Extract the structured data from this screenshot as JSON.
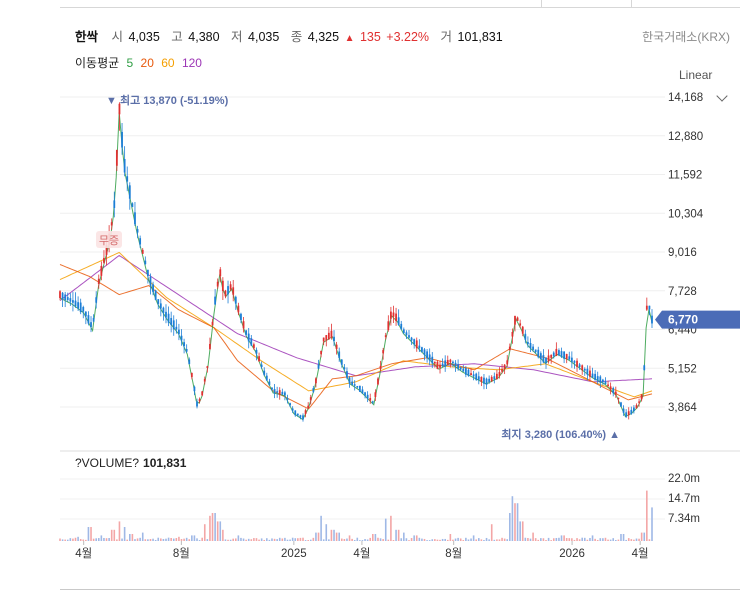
{
  "header": {
    "name": "한싹",
    "open_label": "시",
    "open": "4,035",
    "high_label": "고",
    "high": "4,380",
    "low_label": "저",
    "low": "4,035",
    "close_label": "종",
    "close": "4,325",
    "change_arrow": "▲",
    "change": "135",
    "change_pct": "+3.22%",
    "volume_label": "거",
    "volume": "101,831",
    "exchange": "한국거래소(KRX)"
  },
  "moving_average": {
    "label": "이동평균",
    "periods": [
      {
        "value": "5",
        "color": "#2f9e44"
      },
      {
        "value": "20",
        "color": "#e8590c"
      },
      {
        "value": "60",
        "color": "#f59f00"
      },
      {
        "value": "120",
        "color": "#9c36b5"
      }
    ]
  },
  "scale": {
    "label": "Linear"
  },
  "chart_data": {
    "type": "candlestick",
    "y_ticks": [
      "14,168",
      "12,880",
      "11,592",
      "10,304",
      "9,016",
      "7,728",
      "6,440",
      "5,152",
      "3,864"
    ],
    "ylim": [
      3200,
      14400
    ],
    "current_price": "6,770",
    "high_annotation": "▼ 최고 13,870 (-51.19%)",
    "low_annotation": "최지 3,280 (106.40%) ▲",
    "badge": "무증",
    "x_ticks": [
      "4월",
      "8월",
      "2025",
      "4월",
      "8월",
      "2026",
      "4월"
    ],
    "price_path": [
      [
        0,
        7600
      ],
      [
        0.02,
        7400
      ],
      [
        0.04,
        7100
      ],
      [
        0.055,
        6500
      ],
      [
        0.065,
        8000
      ],
      [
        0.075,
        8800
      ],
      [
        0.085,
        9600
      ],
      [
        0.093,
        10800
      ],
      [
        0.1,
        13870
      ],
      [
        0.108,
        12000
      ],
      [
        0.118,
        11000
      ],
      [
        0.13,
        9800
      ],
      [
        0.14,
        9000
      ],
      [
        0.15,
        8200
      ],
      [
        0.165,
        7400
      ],
      [
        0.18,
        6900
      ],
      [
        0.2,
        6400
      ],
      [
        0.215,
        5700
      ],
      [
        0.225,
        4700
      ],
      [
        0.232,
        3900
      ],
      [
        0.24,
        4300
      ],
      [
        0.25,
        5300
      ],
      [
        0.262,
        7400
      ],
      [
        0.27,
        8400
      ],
      [
        0.278,
        7600
      ],
      [
        0.29,
        7900
      ],
      [
        0.3,
        7200
      ],
      [
        0.315,
        6300
      ],
      [
        0.33,
        5800
      ],
      [
        0.345,
        5000
      ],
      [
        0.36,
        4400
      ],
      [
        0.38,
        4300
      ],
      [
        0.395,
        3700
      ],
      [
        0.41,
        3500
      ],
      [
        0.42,
        3900
      ],
      [
        0.432,
        4700
      ],
      [
        0.445,
        6100
      ],
      [
        0.46,
        6300
      ],
      [
        0.475,
        5400
      ],
      [
        0.49,
        4700
      ],
      [
        0.505,
        4500
      ],
      [
        0.52,
        4200
      ],
      [
        0.53,
        4000
      ],
      [
        0.54,
        5000
      ],
      [
        0.55,
        6200
      ],
      [
        0.56,
        7000
      ],
      [
        0.57,
        6800
      ],
      [
        0.58,
        6400
      ],
      [
        0.6,
        6000
      ],
      [
        0.62,
        5600
      ],
      [
        0.64,
        5200
      ],
      [
        0.66,
        5400
      ],
      [
        0.68,
        5100
      ],
      [
        0.7,
        4900
      ],
      [
        0.72,
        4700
      ],
      [
        0.74,
        4900
      ],
      [
        0.755,
        5300
      ],
      [
        0.77,
        6900
      ],
      [
        0.78,
        6500
      ],
      [
        0.79,
        6000
      ],
      [
        0.8,
        5800
      ],
      [
        0.82,
        5400
      ],
      [
        0.84,
        5700
      ],
      [
        0.86,
        5500
      ],
      [
        0.88,
        5200
      ],
      [
        0.9,
        4900
      ],
      [
        0.92,
        4700
      ],
      [
        0.94,
        4300
      ],
      [
        0.955,
        3600
      ],
      [
        0.965,
        3700
      ],
      [
        0.975,
        3900
      ],
      [
        0.985,
        4300
      ],
      [
        0.992,
        7500
      ],
      [
        1.0,
        6770
      ]
    ],
    "ma120_path": [
      [
        0,
        7400
      ],
      [
        0.1,
        8900
      ],
      [
        0.2,
        7600
      ],
      [
        0.3,
        6300
      ],
      [
        0.4,
        5500
      ],
      [
        0.5,
        4900
      ],
      [
        0.6,
        5200
      ],
      [
        0.7,
        5300
      ],
      [
        0.8,
        5100
      ],
      [
        0.9,
        4700
      ],
      [
        1.0,
        4800
      ]
    ],
    "ma60_path": [
      [
        0,
        8100
      ],
      [
        0.1,
        9000
      ],
      [
        0.18,
        7500
      ],
      [
        0.26,
        6500
      ],
      [
        0.34,
        5400
      ],
      [
        0.42,
        4400
      ],
      [
        0.5,
        4700
      ],
      [
        0.58,
        5400
      ],
      [
        0.66,
        5200
      ],
      [
        0.74,
        5100
      ],
      [
        0.82,
        5300
      ],
      [
        0.9,
        4700
      ],
      [
        0.97,
        4200
      ],
      [
        1.0,
        4400
      ]
    ],
    "ma20_path": [
      [
        0,
        8600
      ],
      [
        0.05,
        8200
      ],
      [
        0.1,
        7600
      ],
      [
        0.15,
        7900
      ],
      [
        0.2,
        7100
      ],
      [
        0.26,
        6500
      ],
      [
        0.3,
        5400
      ],
      [
        0.36,
        4400
      ],
      [
        0.42,
        3800
      ],
      [
        0.46,
        4800
      ],
      [
        0.5,
        4900
      ],
      [
        0.56,
        5300
      ],
      [
        0.62,
        5500
      ],
      [
        0.7,
        5100
      ],
      [
        0.76,
        5800
      ],
      [
        0.82,
        5500
      ],
      [
        0.9,
        4700
      ],
      [
        0.96,
        4100
      ],
      [
        1.0,
        4300
      ]
    ],
    "volume_ticks": [
      "22.0m",
      "14.7m",
      "7.34m"
    ],
    "volume_max": 25000000,
    "volume_spikes": [
      [
        0.03,
        1.5
      ],
      [
        0.05,
        5.0
      ],
      [
        0.07,
        2.0
      ],
      [
        0.09,
        4.0
      ],
      [
        0.1,
        7.0
      ],
      [
        0.11,
        5.0
      ],
      [
        0.12,
        2.5
      ],
      [
        0.14,
        3.0
      ],
      [
        0.2,
        1.5
      ],
      [
        0.225,
        2.0
      ],
      [
        0.245,
        6.0
      ],
      [
        0.252,
        9.0
      ],
      [
        0.26,
        10.0
      ],
      [
        0.268,
        7.0
      ],
      [
        0.276,
        4.0
      ],
      [
        0.3,
        2.0
      ],
      [
        0.35,
        1.0
      ],
      [
        0.4,
        1.0
      ],
      [
        0.435,
        3.0
      ],
      [
        0.44,
        9.0
      ],
      [
        0.45,
        6.0
      ],
      [
        0.46,
        4.0
      ],
      [
        0.47,
        3.0
      ],
      [
        0.49,
        2.0
      ],
      [
        0.53,
        2.5
      ],
      [
        0.55,
        8.0
      ],
      [
        0.56,
        9.0
      ],
      [
        0.57,
        4.0
      ],
      [
        0.58,
        3.0
      ],
      [
        0.6,
        2.0
      ],
      [
        0.66,
        2.5
      ],
      [
        0.7,
        2.0
      ],
      [
        0.73,
        6.0
      ],
      [
        0.76,
        10.0
      ],
      [
        0.765,
        16.0
      ],
      [
        0.77,
        13.5
      ],
      [
        0.78,
        7.0
      ],
      [
        0.8,
        3.0
      ],
      [
        0.85,
        2.0
      ],
      [
        0.9,
        2.0
      ],
      [
        0.95,
        2.5
      ],
      [
        0.985,
        3.0
      ],
      [
        0.992,
        18.0
      ],
      [
        1.0,
        12.0
      ]
    ],
    "volume_label": "?VOLUME?",
    "volume_value": "101,831"
  }
}
